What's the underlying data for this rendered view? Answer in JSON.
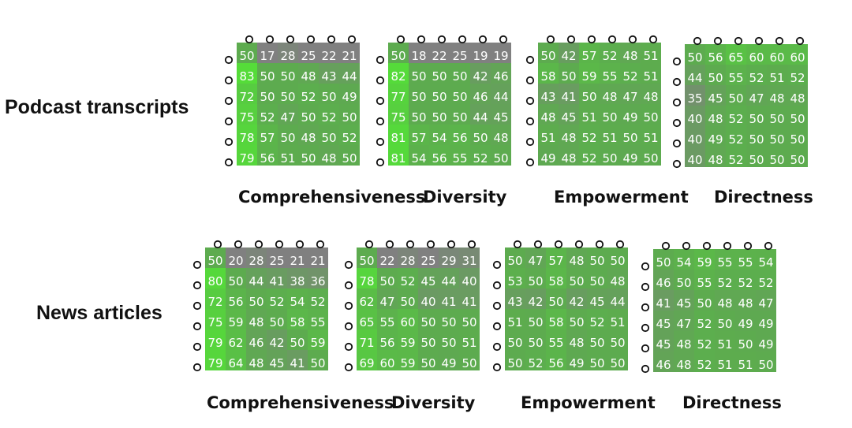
{
  "colors": {
    "green_strong": "#54df38",
    "green_base": "#5dab4f",
    "gray": "#808080",
    "text": "#ffffff",
    "marker": "#111111"
  },
  "row_labels": [
    "Podcast transcripts",
    "News articles"
  ],
  "metric_labels": [
    "Comprehensiveness",
    "Diversity",
    "Empowerment",
    "Directness"
  ],
  "chart_data": [
    {
      "type": "heatmap",
      "dataset": "Podcast transcripts",
      "metric": "Comprehensiveness",
      "values": [
        [
          50,
          17,
          28,
          25,
          22,
          21
        ],
        [
          83,
          50,
          50,
          48,
          43,
          44
        ],
        [
          72,
          50,
          50,
          52,
          50,
          49
        ],
        [
          75,
          52,
          47,
          50,
          52,
          50
        ],
        [
          78,
          57,
          50,
          48,
          50,
          52
        ],
        [
          79,
          56,
          51,
          50,
          48,
          50
        ]
      ]
    },
    {
      "type": "heatmap",
      "dataset": "Podcast transcripts",
      "metric": "Diversity",
      "values": [
        [
          50,
          18,
          22,
          25,
          19,
          19
        ],
        [
          82,
          50,
          50,
          50,
          42,
          46
        ],
        [
          77,
          50,
          50,
          50,
          46,
          44
        ],
        [
          75,
          50,
          50,
          50,
          44,
          45
        ],
        [
          81,
          57,
          54,
          56,
          50,
          48
        ],
        [
          81,
          54,
          56,
          55,
          52,
          50
        ]
      ]
    },
    {
      "type": "heatmap",
      "dataset": "Podcast transcripts",
      "metric": "Empowerment",
      "values": [
        [
          50,
          42,
          57,
          52,
          48,
          51
        ],
        [
          58,
          50,
          59,
          55,
          52,
          51
        ],
        [
          43,
          41,
          50,
          48,
          47,
          48
        ],
        [
          48,
          45,
          51,
          50,
          49,
          50
        ],
        [
          51,
          48,
          52,
          51,
          50,
          51
        ],
        [
          49,
          48,
          52,
          50,
          49,
          50
        ]
      ]
    },
    {
      "type": "heatmap",
      "dataset": "Podcast transcripts",
      "metric": "Directness",
      "values": [
        [
          50,
          56,
          65,
          60,
          60,
          60
        ],
        [
          44,
          50,
          55,
          52,
          51,
          52
        ],
        [
          35,
          45,
          50,
          47,
          48,
          48
        ],
        [
          40,
          48,
          52,
          50,
          50,
          50
        ],
        [
          40,
          49,
          52,
          50,
          50,
          50
        ],
        [
          40,
          48,
          52,
          50,
          50,
          50
        ]
      ]
    },
    {
      "type": "heatmap",
      "dataset": "News articles",
      "metric": "Comprehensiveness",
      "values": [
        [
          50,
          20,
          28,
          25,
          21,
          21
        ],
        [
          80,
          50,
          44,
          41,
          38,
          36
        ],
        [
          72,
          56,
          50,
          52,
          54,
          52
        ],
        [
          75,
          59,
          48,
          50,
          58,
          55
        ],
        [
          79,
          62,
          46,
          42,
          50,
          59
        ],
        [
          79,
          64,
          48,
          45,
          41,
          50
        ]
      ]
    },
    {
      "type": "heatmap",
      "dataset": "News articles",
      "metric": "Diversity",
      "values": [
        [
          50,
          22,
          28,
          25,
          29,
          31
        ],
        [
          78,
          50,
          52,
          45,
          44,
          40
        ],
        [
          62,
          47,
          50,
          40,
          41,
          41
        ],
        [
          65,
          55,
          60,
          50,
          50,
          50
        ],
        [
          71,
          56,
          59,
          50,
          50,
          51
        ],
        [
          69,
          60,
          59,
          50,
          49,
          50
        ]
      ]
    },
    {
      "type": "heatmap",
      "dataset": "News articles",
      "metric": "Empowerment",
      "values": [
        [
          50,
          47,
          57,
          48,
          50,
          50
        ],
        [
          53,
          50,
          58,
          50,
          50,
          48
        ],
        [
          43,
          42,
          50,
          42,
          45,
          44
        ],
        [
          51,
          50,
          58,
          50,
          52,
          51
        ],
        [
          50,
          50,
          55,
          48,
          50,
          50
        ],
        [
          50,
          52,
          56,
          49,
          50,
          50
        ]
      ]
    },
    {
      "type": "heatmap",
      "dataset": "News articles",
      "metric": "Directness",
      "values": [
        [
          50,
          54,
          59,
          55,
          55,
          54
        ],
        [
          46,
          50,
          55,
          52,
          52,
          52
        ],
        [
          41,
          45,
          50,
          48,
          48,
          47
        ],
        [
          45,
          47,
          52,
          50,
          49,
          49
        ],
        [
          45,
          48,
          52,
          51,
          50,
          49
        ],
        [
          46,
          48,
          52,
          51,
          51,
          50
        ]
      ]
    }
  ]
}
